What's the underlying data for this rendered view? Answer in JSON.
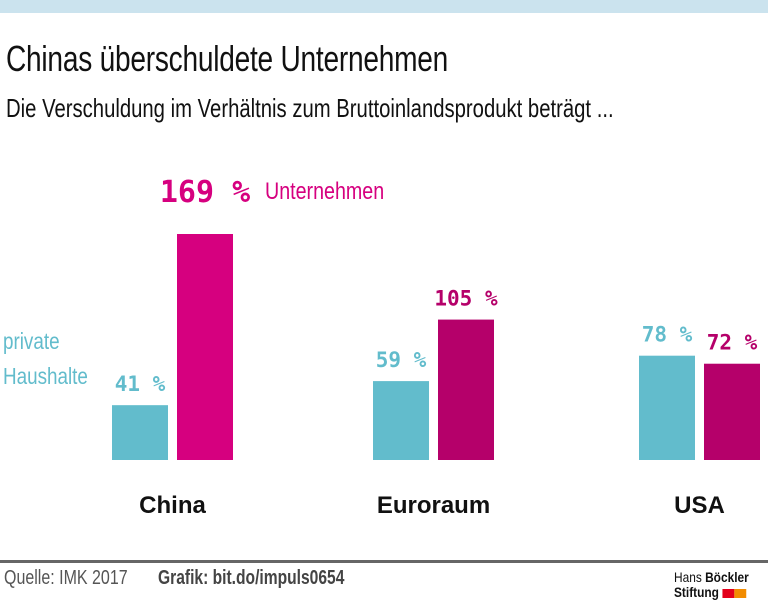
{
  "header": {
    "title": "Chinas überschuldete Unternehmen",
    "subtitle": "Die Verschuldung im Verhältnis zum Bruttoinlandsprodukt beträgt ..."
  },
  "footer": {
    "source": "Quelle: IMK 2017",
    "credit": "Grafik: bit.do/impuls0654",
    "logo_line1_regular": "Hans",
    "logo_line1_bold": "Böckler",
    "logo_line2": "Stiftung",
    "logo_colors": [
      "#e3001b",
      "#f28c00"
    ]
  },
  "colors": {
    "households": "#62bccc",
    "corporations_highlight": "#d6007f",
    "corporations": "#b5006a",
    "topbar": "#cbe3ee"
  },
  "chart_data": {
    "type": "bar",
    "title": "Chinas überschuldete Unternehmen",
    "subtitle": "Die Verschuldung im Verhältnis zum Bruttoinlandsprodukt beträgt ...",
    "categories": [
      "China",
      "Euroraum",
      "USA"
    ],
    "unit": "%",
    "series": [
      {
        "name": "private Haushalte",
        "values": [
          41,
          59,
          78
        ]
      },
      {
        "name": "Unternehmen",
        "values": [
          169,
          105,
          72
        ]
      }
    ],
    "value_labels": {
      "private Haushalte": [
        "41 %",
        "59 %",
        "78 %"
      ],
      "Unternehmen": [
        "169 %",
        "105 %",
        "72 %"
      ]
    },
    "legend": {
      "households_line1": "private",
      "households_line2": "Haushalte",
      "corporations": "Unternehmen"
    },
    "xlabel": "",
    "ylabel": "",
    "ylim": [
      0,
      169
    ],
    "grid": false,
    "axes_visible": false
  }
}
